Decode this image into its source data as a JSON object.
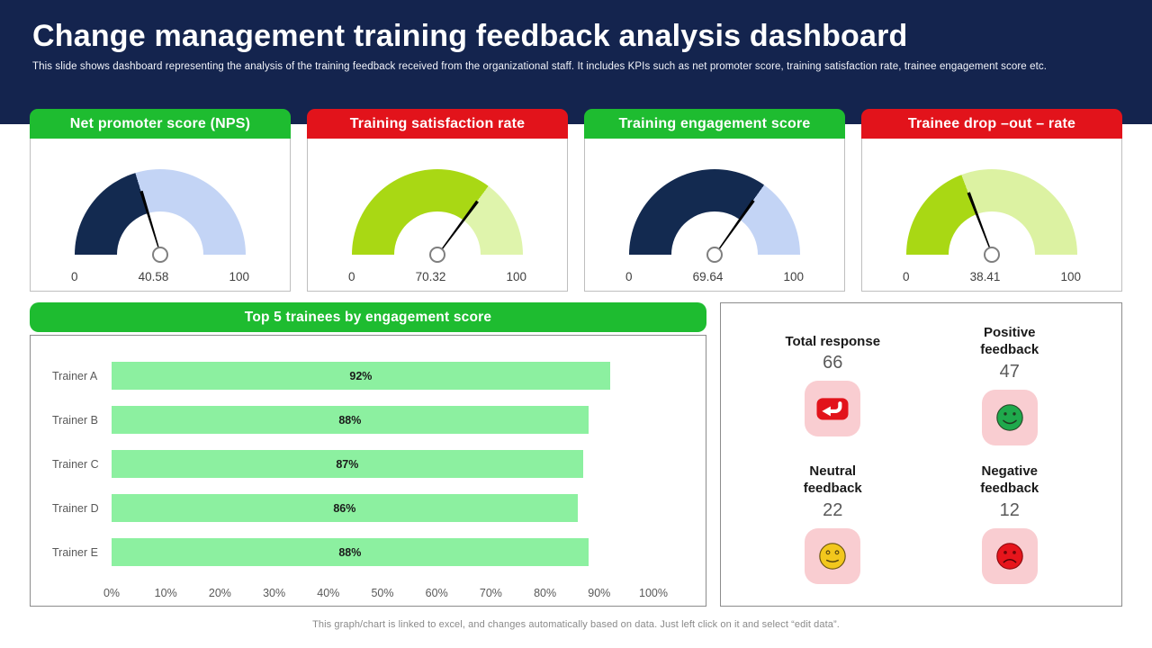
{
  "header": {
    "title": "Change management training feedback analysis dashboard",
    "subtitle": "This slide shows dashboard representing the analysis of the training feedback received from the organizational staff. It includes KPIs such as net promoter score, training satisfaction rate, trainee engagement score etc."
  },
  "theme": {
    "band_navy": "#14244E",
    "green_header": "#1EBC30",
    "red_header": "#E2131B",
    "panel_border": "#8c8c8c",
    "pink_icon_bg": "#F9CDD1"
  },
  "chart_data": [
    {
      "type": "gauge",
      "title": "Net promoter score (NPS)",
      "value": 40.58,
      "min": 0,
      "max": 100,
      "header_color": "#1EBC30",
      "fill_color": "#132A50",
      "track_color": "#C3D4F5"
    },
    {
      "type": "gauge",
      "title": "Training satisfaction rate",
      "value": 70.32,
      "min": 0,
      "max": 100,
      "header_color": "#E2131B",
      "fill_color": "#A9D814",
      "track_color": "#DFF4AC"
    },
    {
      "type": "gauge",
      "title": "Training engagement score",
      "value": 69.64,
      "min": 0,
      "max": 100,
      "header_color": "#1EBC30",
      "fill_color": "#132A50",
      "track_color": "#C3D4F5"
    },
    {
      "type": "gauge",
      "title": "Trainee drop –out – rate",
      "value": 38.41,
      "min": 0,
      "max": 100,
      "header_color": "#E2131B",
      "fill_color": "#A9D814",
      "track_color": "#DCF2A2"
    },
    {
      "type": "bar",
      "title": "Top 5 trainees by  engagement score",
      "header_color": "#1EBC30",
      "categories": [
        "Trainer A",
        "Trainer B",
        "Trainer C",
        "Trainer D",
        "Trainer E"
      ],
      "values": [
        92,
        88,
        87,
        86,
        88
      ],
      "value_labels": [
        "92%",
        "88%",
        "87%",
        "86%",
        "88%"
      ],
      "bar_color": "#8CF0A0",
      "xlim": [
        0,
        100
      ],
      "x_ticks": [
        "0%",
        "10%",
        "20%",
        "30%",
        "40%",
        "50%",
        "60%",
        "70%",
        "80%",
        "90%",
        "100%"
      ],
      "grid": false,
      "legend": false
    }
  ],
  "stats_panel": {
    "cards": [
      {
        "label": "Total response",
        "value": "66",
        "icon": "reply-arrow-icon",
        "icon_color": "#E2131B"
      },
      {
        "label": "Positive feedback",
        "value": "47",
        "icon": "smiley-happy-icon",
        "icon_color": "#1FA94C"
      },
      {
        "label": "Neutral feedback",
        "value": "22",
        "icon": "smiley-neutral-icon",
        "icon_color": "#F2C71D"
      },
      {
        "label": "Negative feedback",
        "value": "12",
        "icon": "smiley-sad-icon",
        "icon_color": "#E6151C"
      }
    ]
  },
  "footer": {
    "note": "This graph/chart is linked to excel,  and changes automatically based on data. Just left click on it and select “edit data”."
  }
}
